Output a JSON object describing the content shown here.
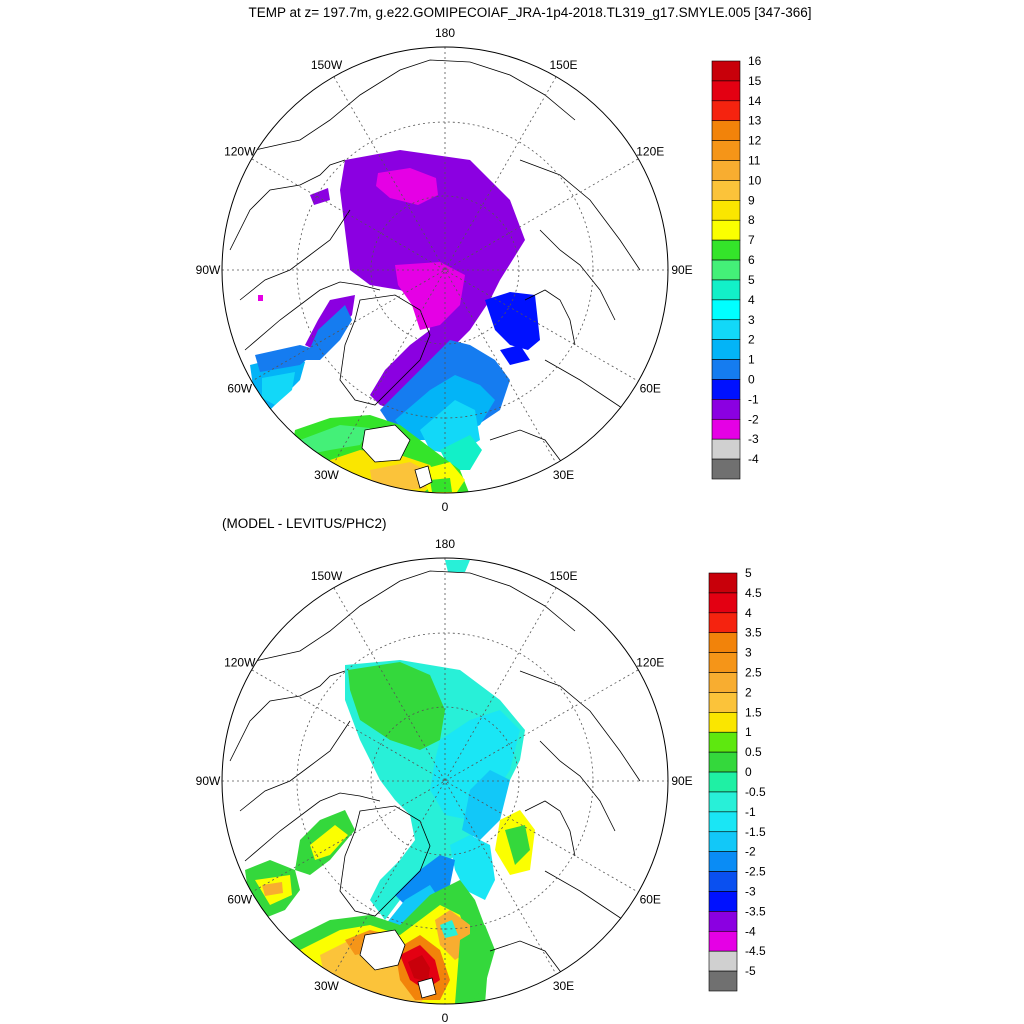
{
  "header": {
    "title": "TEMP at z= 197.7m, g.e22.GOMIPECOIAF_JRA-1p4-2018.TL319_g17.SMYLE.005 [347-366]"
  },
  "colors": {
    "land": "#ffffff",
    "coast": "#000000",
    "grid": "#555555"
  },
  "maps": [
    {
      "name": "model-temp",
      "subtitle": "",
      "lon_labels": [
        "180",
        "150E",
        "120E",
        "90E",
        "60E",
        "30E",
        "0",
        "30W",
        "60W",
        "90W",
        "120W",
        "150W"
      ],
      "colorbar": {
        "labels": [
          "16",
          "15",
          "14",
          "13",
          "12",
          "11",
          "10",
          "9",
          "8",
          "7",
          "6",
          "5",
          "4",
          "3",
          "2",
          "1",
          "0",
          "-1",
          "-2",
          "-3",
          "-4"
        ],
        "colors": [
          "#c8000a",
          "#e30012",
          "#f5230f",
          "#f2830a",
          "#f59518",
          "#f8ad30",
          "#fbc33a",
          "#fae600",
          "#fbff00",
          "#34e42a",
          "#44f078",
          "#12f0c8",
          "#00ffff",
          "#12d8f8",
          "#03b4f7",
          "#157cf0",
          "#0011ff",
          "#8b00e1",
          "#e500e5",
          "#d0d0d0",
          "#707070"
        ]
      }
    },
    {
      "name": "model-minus-obs",
      "subtitle": "(MODEL - LEVITUS/PHC2)",
      "lon_labels": [
        "180",
        "150E",
        "120E",
        "90E",
        "60E",
        "30E",
        "0",
        "30W",
        "60W",
        "90W",
        "120W",
        "150W"
      ],
      "colorbar": {
        "labels": [
          "5",
          "4.5",
          "4",
          "3.5",
          "3",
          "2.5",
          "2",
          "1.5",
          "1",
          "0.5",
          "0",
          "-0.5",
          "-1",
          "-1.5",
          "-2",
          "-2.5",
          "-3",
          "-3.5",
          "-4",
          "-4.5",
          "-5"
        ],
        "colors": [
          "#c8000a",
          "#e30012",
          "#f5230f",
          "#f2830a",
          "#f59518",
          "#f8ad30",
          "#fbc33a",
          "#fae600",
          "#5ee80f",
          "#34d83c",
          "#1ff0a4",
          "#28f0d8",
          "#1ae6f5",
          "#12c8f8",
          "#0a8cf5",
          "#0a50f0",
          "#0011ff",
          "#8b00e1",
          "#e500e5",
          "#d0d0d0",
          "#707070"
        ]
      }
    }
  ]
}
